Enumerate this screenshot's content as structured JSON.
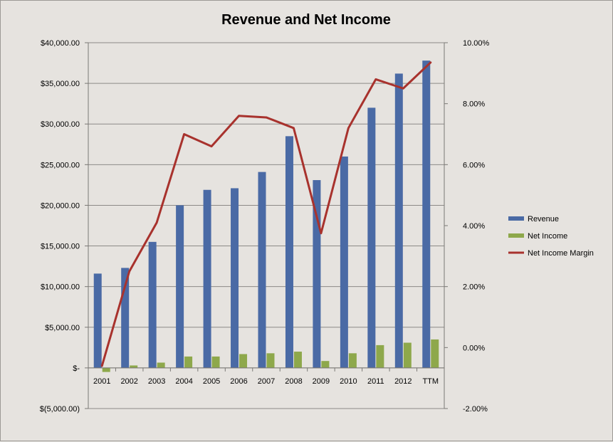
{
  "chart_data": {
    "type": "bar",
    "title": "Revenue and Net Income",
    "categories": [
      "2001",
      "2002",
      "2003",
      "2004",
      "2005",
      "2006",
      "2007",
      "2008",
      "2009",
      "2010",
      "2011",
      "2012",
      "TTM"
    ],
    "series": [
      {
        "name": "Revenue",
        "kind": "bar",
        "axis": "left",
        "color": "#4a6aa5",
        "values": [
          11600,
          12300,
          15500,
          20000,
          21900,
          22100,
          24100,
          28500,
          23100,
          26000,
          32000,
          36200,
          37800
        ]
      },
      {
        "name": "Net Income",
        "kind": "bar",
        "axis": "left",
        "color": "#8ea84b",
        "values": [
          -500,
          300,
          650,
          1400,
          1400,
          1700,
          1800,
          2000,
          850,
          1800,
          2800,
          3100,
          3500
        ]
      },
      {
        "name": "Net Income Margin",
        "kind": "line",
        "axis": "right",
        "color": "#a8322d",
        "values": [
          -0.6,
          2.5,
          4.1,
          7.0,
          6.6,
          7.6,
          7.55,
          7.2,
          3.75,
          7.2,
          8.8,
          8.5,
          9.35
        ]
      }
    ],
    "y_left": {
      "min": -5000,
      "max": 40000,
      "step": 5000,
      "tick_labels": [
        "$(5,000.00)",
        "$-",
        "$5,000.00",
        "$10,000.00",
        "$15,000.00",
        "$20,000.00",
        "$25,000.00",
        "$30,000.00",
        "$35,000.00",
        "$40,000.00"
      ]
    },
    "y_right": {
      "min": -2,
      "max": 10,
      "step": 2,
      "tick_labels": [
        "-2.00%",
        "0.00%",
        "2.00%",
        "4.00%",
        "6.00%",
        "8.00%",
        "10.00%"
      ]
    },
    "grid": true,
    "legend_position": "right",
    "colors": {
      "background": "#e6e3df",
      "grid": "#8c8a87",
      "axis": "#7a7875"
    }
  }
}
